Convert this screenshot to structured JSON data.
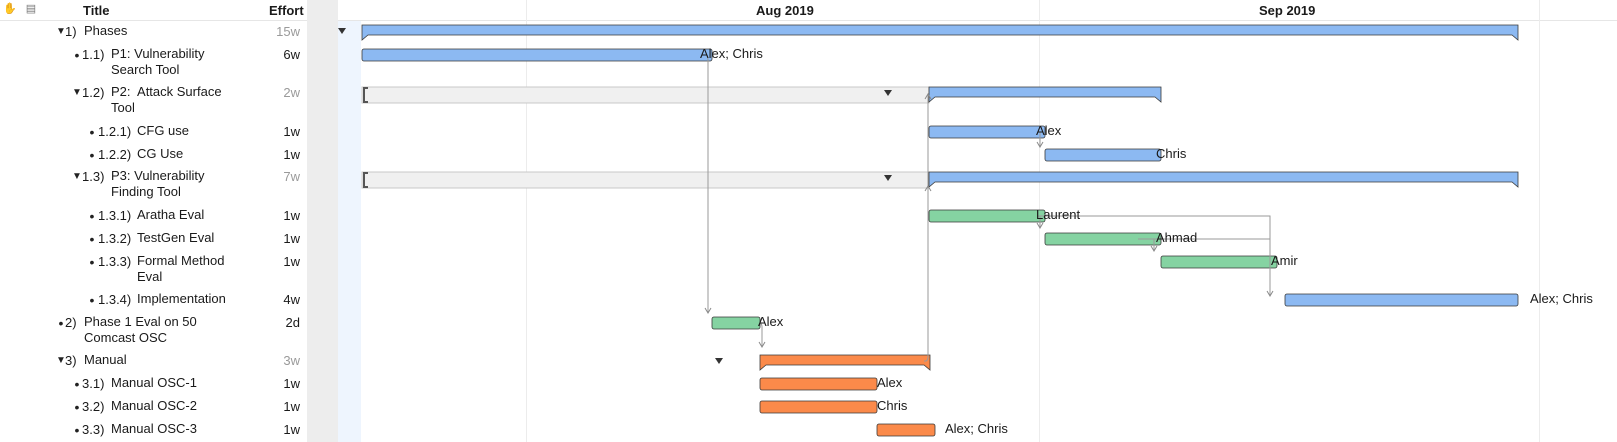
{
  "header": {
    "title_label": "Title",
    "effort_label": "Effort"
  },
  "toolbar": {
    "icons": [
      "hand-icon",
      "note-icon"
    ]
  },
  "timeline": {
    "months": [
      "Aug 2019",
      "Sep 2019"
    ]
  },
  "rows": [
    {
      "num": "1)",
      "title": "Phases",
      "effort": "15w",
      "group": true,
      "expanded": true,
      "resources": ""
    },
    {
      "num": "1.1)",
      "title": "P1: Vulnerability\nSearch Tool",
      "effort": "6w",
      "group": false,
      "resources": "Alex; Chris"
    },
    {
      "num": "1.2)",
      "title": "P2:  Attack Surface\nTool",
      "effort": "2w",
      "group": true,
      "expanded": true,
      "resources": ""
    },
    {
      "num": "1.2.1)",
      "title": "CFG use",
      "effort": "1w",
      "group": false,
      "resources": "Alex"
    },
    {
      "num": "1.2.2)",
      "title": "CG Use",
      "effort": "1w",
      "group": false,
      "resources": "Chris"
    },
    {
      "num": "1.3)",
      "title": "P3: Vulnerability\nFinding Tool",
      "effort": "7w",
      "group": true,
      "expanded": true,
      "resources": ""
    },
    {
      "num": "1.3.1)",
      "title": "Aratha Eval",
      "effort": "1w",
      "group": false,
      "resources": "Laurent"
    },
    {
      "num": "1.3.2)",
      "title": "TestGen Eval",
      "effort": "1w",
      "group": false,
      "resources": "Ahmad"
    },
    {
      "num": "1.3.3)",
      "title": "Formal Method\nEval",
      "effort": "1w",
      "group": false,
      "resources": "Amir"
    },
    {
      "num": "1.3.4)",
      "title": "Implementation",
      "effort": "4w",
      "group": false,
      "resources": "Alex; Chris"
    },
    {
      "num": "2)",
      "title": "Phase 1 Eval on 50\nComcast OSC",
      "effort": "2d",
      "group": false,
      "resources": "Alex"
    },
    {
      "num": "3)",
      "title": "Manual",
      "effort": "3w",
      "group": true,
      "expanded": true,
      "resources": ""
    },
    {
      "num": "3.1)",
      "title": "Manual OSC-1",
      "effort": "1w",
      "group": false,
      "resources": "Alex"
    },
    {
      "num": "3.2)",
      "title": "Manual OSC-2",
      "effort": "1w",
      "group": false,
      "resources": "Chris"
    },
    {
      "num": "3.3)",
      "title": "Manual OSC-3",
      "effort": "1w",
      "group": false,
      "resources": "Alex; Chris"
    }
  ],
  "colors": {
    "blue": "#8cb9f2",
    "green": "#85d3a2",
    "orange": "#fb8a4a",
    "border": "#3a3a3a"
  }
}
